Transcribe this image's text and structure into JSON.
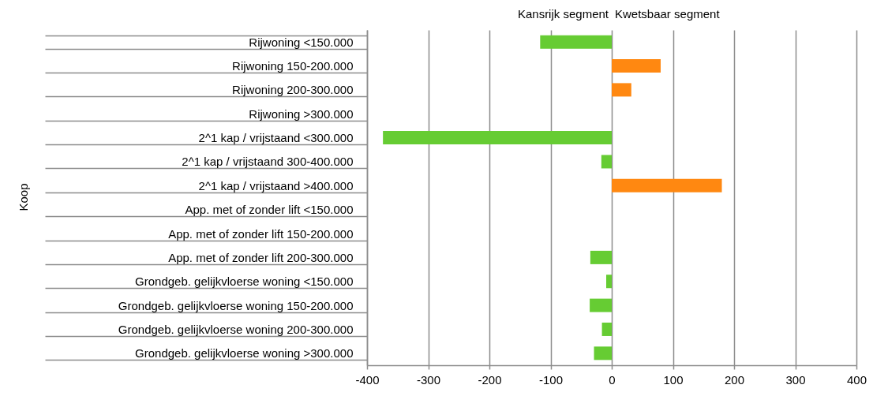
{
  "chart_data": {
    "type": "bar",
    "orientation": "horizontal",
    "annotations": [
      "Kansrijk segment",
      "Kwetsbaar segment",
      "Koop"
    ],
    "categories": [
      "Rijwoning <150.000",
      "Rijwoning 150-200.000",
      "Rijwoning 200-300.000",
      "Rijwoning >300.000",
      "2^1 kap / vrijstaand <300.000",
      "2^1 kap / vrijstaand 300-400.000",
      "2^1 kap / vrijstaand >400.000",
      "App. met of zonder lift  <150.000",
      "App. met of zonder lift  150-200.000",
      "App. met of zonder lift  200-300.000",
      "Grondgeb. gelijkvloerse woning <150.000",
      "Grondgeb. gelijkvloerse woning 150-200.000",
      "Grondgeb. gelijkvloerse woning 200-300.000",
      "Grondgeb. gelijkvloerse woning >300.000"
    ],
    "values": [
      -117,
      80,
      32,
      0,
      -374,
      -17,
      180,
      0,
      0,
      -35,
      -9,
      -36,
      -16,
      -29
    ],
    "colors": [
      "#66cc33",
      "#ff8811",
      "#ff8811",
      "#66cc33",
      "#66cc33",
      "#66cc33",
      "#ff8811",
      "#66cc33",
      "#66cc33",
      "#66cc33",
      "#66cc33",
      "#66cc33",
      "#66cc33",
      "#66cc33"
    ],
    "xlim": [
      -400,
      400
    ],
    "xticks": [
      -400,
      -300,
      -200,
      -100,
      0,
      100,
      200,
      300,
      400
    ],
    "grid": "x"
  }
}
